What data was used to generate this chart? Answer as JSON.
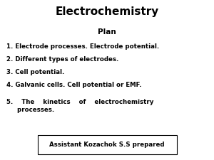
{
  "title": "Electrochemistry",
  "subtitle": "Plan",
  "items": [
    "1. Electrode processes. Electrode potential.",
    "2. Different types of electrodes.",
    "3. Cell potential.",
    "4. Galvanic cells. Cell potential or EMF.",
    "5.    The    kinetics    of    electrochemistry\n     processes."
  ],
  "footer": "Assistant Kozachok S.S prepared",
  "bg_color": "#ffffff",
  "text_color": "#000000",
  "title_fontsize": 11,
  "subtitle_fontsize": 7.5,
  "item_fontsize": 6.2,
  "footer_fontsize": 6.2
}
